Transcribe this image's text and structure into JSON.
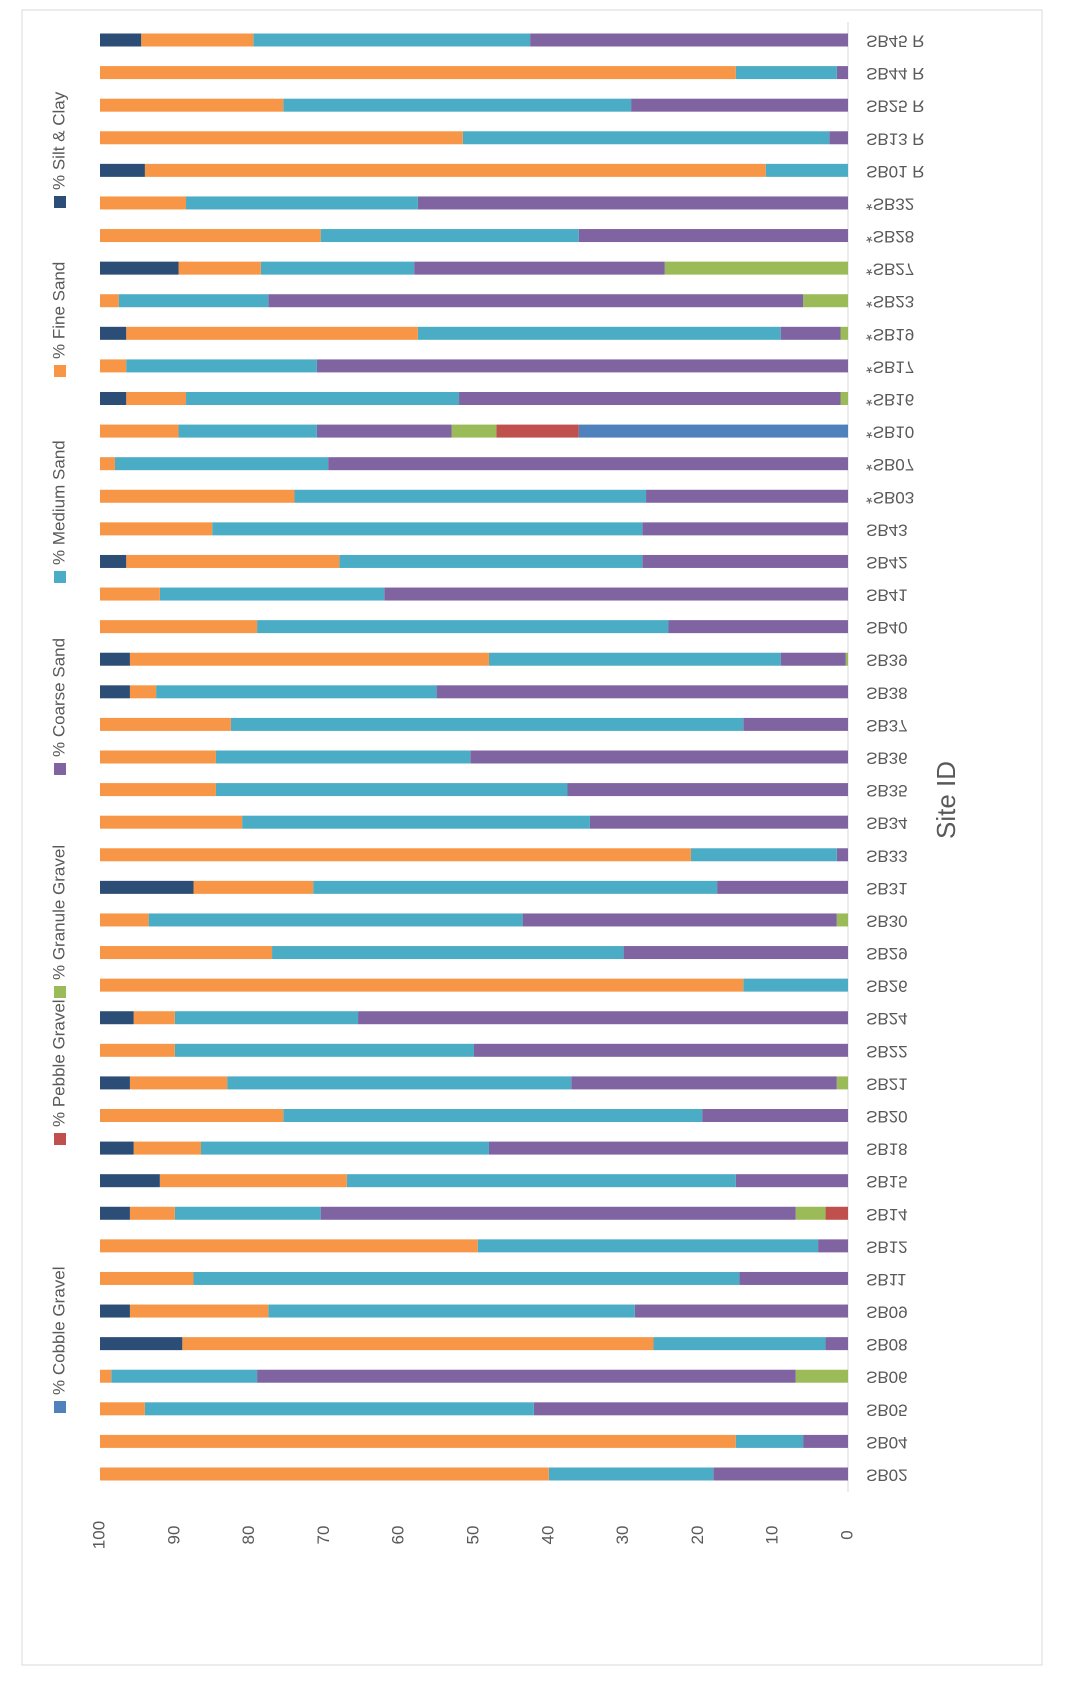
{
  "chart_data": {
    "type": "stacked_bar",
    "x_label": "Site ID",
    "categories": [
      "SB02",
      "SB04",
      "SB05",
      "SB06",
      "SB08",
      "SB09",
      "SB11",
      "SB12",
      "SB14",
      "SB15",
      "SB18",
      "SB20",
      "SB21",
      "SB22",
      "SB24",
      "SB26",
      "SB29",
      "SB30",
      "SB31",
      "SB33",
      "SB34",
      "SB35",
      "SB36",
      "SB37",
      "SB38",
      "SB39",
      "SB40",
      "SB41",
      "SB42",
      "SB43",
      "*SB03",
      "*SB07",
      "*SB10",
      "*SB16",
      "*SB17",
      "*SB19",
      "*SB23",
      "*SB27",
      "*SB28",
      "*SB32",
      "SB01 R",
      "SB13 R",
      "SB25 R",
      "SB44 R",
      "SB45 R"
    ],
    "series": [
      {
        "name": "% Cobble Gravel",
        "color": "#4f81bd",
        "values": [
          0,
          0,
          0,
          0,
          0,
          0,
          0,
          0,
          0,
          0,
          0,
          0,
          0,
          0,
          0,
          0,
          0,
          0,
          0,
          0,
          0,
          0,
          0,
          0,
          0,
          0,
          0,
          0,
          0,
          0,
          0,
          0,
          36,
          0,
          0,
          0,
          0,
          0,
          0,
          0,
          0,
          0,
          0,
          0,
          0
        ]
      },
      {
        "name": "% Pebble Gravel",
        "color": "#c0504d",
        "values": [
          0,
          0,
          0,
          0,
          0,
          0,
          0,
          0,
          3,
          0,
          0,
          0,
          0,
          0,
          0,
          0,
          0,
          0,
          0,
          0,
          0,
          0,
          0,
          0,
          0,
          0,
          0,
          0,
          0,
          0,
          0,
          0,
          11,
          0,
          0,
          0,
          0,
          0,
          0,
          0,
          0,
          0,
          0,
          0,
          0
        ]
      },
      {
        "name": "% Granule Gravel",
        "color": "#9bbb59",
        "values": [
          0,
          0,
          0,
          7,
          0,
          0,
          0,
          0,
          4,
          0,
          0,
          0,
          1.5,
          0,
          0,
          0,
          0,
          1.5,
          0,
          0,
          0,
          0,
          0,
          0,
          0,
          0.3,
          0,
          0,
          0,
          0,
          0,
          0,
          6,
          1,
          0,
          1,
          6,
          24.5,
          0,
          0,
          0,
          0,
          0,
          0,
          0
        ]
      },
      {
        "name": "% Coarse Sand",
        "color": "#8064a2",
        "values": [
          18,
          6,
          42,
          72,
          3,
          28.5,
          14.5,
          4,
          63.5,
          15,
          48,
          19.5,
          35.5,
          50,
          65.5,
          0,
          30,
          42,
          17.5,
          1.5,
          34.5,
          37.5,
          50.5,
          14,
          55,
          8.7,
          24,
          62,
          27.5,
          27.5,
          27,
          69.5,
          18,
          51,
          71,
          8,
          71.5,
          33.5,
          36,
          57.5,
          0,
          2.5,
          29,
          1.5,
          42.5
        ]
      },
      {
        "name": "% Medium Sand",
        "color": "#4bacc6",
        "values": [
          22,
          9,
          52,
          19.5,
          23,
          49,
          73,
          45.5,
          19.5,
          52,
          38.5,
          56,
          46,
          40,
          24.5,
          14,
          47,
          50,
          54,
          19.5,
          46.5,
          47,
          34,
          68.5,
          37.5,
          39,
          55,
          30,
          40.5,
          57.5,
          47,
          28.5,
          18.5,
          36.5,
          25.5,
          48.5,
          20,
          20.5,
          34.5,
          31,
          11,
          49,
          46.5,
          13.5,
          37
        ]
      },
      {
        "name": "% Fine Sand",
        "color": "#f79646",
        "values": [
          60,
          85,
          6,
          1.5,
          63,
          18.5,
          12.5,
          50.5,
          6,
          25,
          9,
          24.5,
          13,
          10,
          5.5,
          86,
          23,
          6.5,
          16,
          79,
          19,
          15.5,
          15.5,
          17.5,
          3.5,
          48,
          21,
          8,
          28.5,
          15,
          26,
          2,
          10.5,
          8,
          3.5,
          39,
          2.5,
          11,
          29.5,
          11.5,
          83,
          48.5,
          24.5,
          85,
          15
        ]
      },
      {
        "name": "% Silt & Clay",
        "color": "#2c4d75",
        "values": [
          0,
          0,
          0,
          0,
          11,
          4,
          0,
          0,
          4,
          8,
          4.5,
          0,
          4,
          0,
          4.5,
          0,
          0,
          0,
          12.5,
          0,
          0,
          0,
          0,
          0,
          4,
          4,
          0,
          0,
          3.5,
          0,
          0,
          0,
          0,
          3.5,
          0,
          3.5,
          0,
          10.5,
          0,
          0,
          6,
          0,
          0,
          0,
          5.5
        ]
      }
    ],
    "ylim": [
      0,
      100
    ],
    "yticks": [
      0,
      10,
      20,
      30,
      40,
      50,
      60,
      70,
      80,
      90,
      100
    ]
  }
}
